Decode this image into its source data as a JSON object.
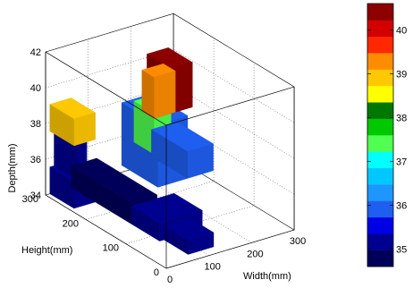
{
  "chart_data": {
    "type": "heatmap",
    "subtype": "3d-voxel",
    "title": "",
    "axes": {
      "x": {
        "label": "Width(mm)",
        "ticks": [
          "0",
          "100",
          "200",
          "300"
        ],
        "range": [
          0,
          300
        ]
      },
      "y": {
        "label": "Height(mm)",
        "ticks": [
          "0",
          "100",
          "200",
          "300"
        ],
        "range": [
          0,
          300
        ]
      },
      "z": {
        "label": "Depth(mm)",
        "ticks": [
          "34",
          "36",
          "38",
          "40",
          "42"
        ],
        "range": [
          34,
          42
        ]
      }
    },
    "grid": true,
    "colorbar": {
      "placement": "right",
      "ticks": [
        "35",
        "36",
        "37",
        "38",
        "39",
        "40"
      ],
      "range": [
        34.6,
        40.6
      ],
      "colors": [
        "#00005a",
        "#000090",
        "#0000e6",
        "#1e5ff0",
        "#1e96ff",
        "#00c8ff",
        "#00ffff",
        "#50ff50",
        "#00c800",
        "#007800",
        "#ffff00",
        "#ffc800",
        "#ff8c00",
        "#ff2800",
        "#d20000",
        "#8c0000"
      ]
    },
    "blocks": [
      {
        "x": [
          60,
          120
        ],
        "y": [
          150,
          300
        ],
        "z": [
          34,
          35.2
        ],
        "value": 34.8
      },
      {
        "x": [
          10,
          60
        ],
        "y": [
          240,
          300
        ],
        "z": [
          34,
          35.5
        ],
        "value": 35.0
      },
      {
        "x": [
          60,
          160
        ],
        "y": [
          80,
          150
        ],
        "z": [
          34,
          35.0
        ],
        "value": 35.3
      },
      {
        "x": [
          70,
          130
        ],
        "y": [
          20,
          80
        ],
        "z": [
          34,
          34.8
        ],
        "value": 35.2
      },
      {
        "x": [
          20,
          40
        ],
        "y": [
          240,
          300
        ],
        "z": [
          35.5,
          37.5
        ],
        "value": 35.0
      },
      {
        "x": [
          10,
          60
        ],
        "y": [
          240,
          300
        ],
        "z": [
          37.5,
          39.0
        ],
        "value": 38.8
      },
      {
        "x": [
          150,
          220
        ],
        "y": [
          180,
          270
        ],
        "z": [
          35.0,
          38.5
        ],
        "value": 36.0
      },
      {
        "x": [
          220,
          280
        ],
        "y": [
          180,
          270
        ],
        "z": [
          35.0,
          36.5
        ],
        "value": 36.0
      },
      {
        "x": [
          160,
          210
        ],
        "y": [
          200,
          230
        ],
        "z": [
          38.5,
          40.8
        ],
        "value": 39.3
      },
      {
        "x": [
          200,
          250
        ],
        "y": [
          200,
          260
        ],
        "z": [
          38.5,
          41.0
        ],
        "value": 40.3
      },
      {
        "x": [
          160,
          200
        ],
        "y": [
          200,
          250
        ],
        "z": [
          36.5,
          38.8
        ],
        "value": 37.5
      }
    ]
  }
}
